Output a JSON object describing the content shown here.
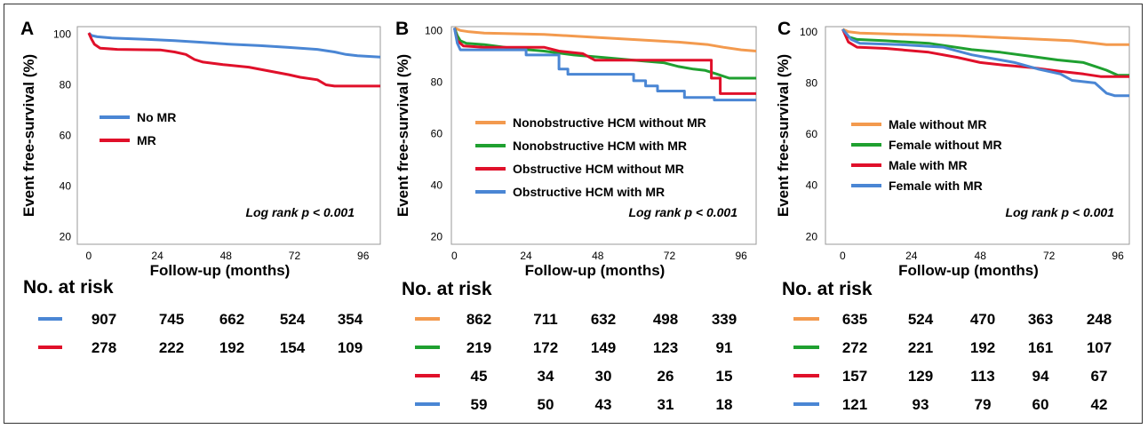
{
  "chart_data": [
    {
      "type": "line",
      "panel_label": "A",
      "ylabel": "Event free-survival (%)",
      "xlabel": "Follow-up (months)",
      "xlim": [
        -4,
        102
      ],
      "ylim": [
        17,
        103
      ],
      "xticks": [
        0,
        24,
        48,
        72,
        96
      ],
      "yticks": [
        20,
        40,
        60,
        80,
        100
      ],
      "annotation": "Log rank p < 0.001",
      "legend_position": "center-left",
      "series": [
        {
          "name": "No MR",
          "color": "#4a86d4",
          "points": [
            [
              0,
              100.5
            ],
            [
              1,
              99.5
            ],
            [
              3,
              99
            ],
            [
              8,
              98.5
            ],
            [
              20,
              98
            ],
            [
              30,
              97.5
            ],
            [
              40,
              96.8
            ],
            [
              50,
              96
            ],
            [
              60,
              95.5
            ],
            [
              70,
              94.8
            ],
            [
              80,
              94
            ],
            [
              86,
              93
            ],
            [
              90,
              92
            ],
            [
              94,
              91.5
            ],
            [
              102,
              91
            ]
          ]
        },
        {
          "name": "MR",
          "color": "#e0102a",
          "points": [
            [
              0,
              100.5
            ],
            [
              1,
              98
            ],
            [
              2,
              96
            ],
            [
              4,
              94.5
            ],
            [
              10,
              94
            ],
            [
              25,
              93.8
            ],
            [
              30,
              93
            ],
            [
              34,
              92
            ],
            [
              37,
              90
            ],
            [
              40,
              89
            ],
            [
              47,
              88
            ],
            [
              56,
              87
            ],
            [
              63,
              85.5
            ],
            [
              70,
              84
            ],
            [
              74,
              83
            ],
            [
              80,
              82
            ],
            [
              83,
              80
            ],
            [
              86,
              79.5
            ],
            [
              102,
              79.5
            ]
          ]
        }
      ],
      "risk_table": {
        "title": "No. at risk",
        "rows": [
          {
            "color": "#4a86d4",
            "values": [
              907,
              745,
              662,
              524,
              354
            ]
          },
          {
            "color": "#e0102a",
            "values": [
              278,
              222,
              192,
              154,
              109
            ]
          }
        ]
      }
    },
    {
      "type": "line",
      "panel_label": "B",
      "ylabel": "Event free-survival (%)",
      "xlabel": "Follow-up (months)",
      "xlim": [
        -1,
        101
      ],
      "ylim": [
        17,
        101.5
      ],
      "xticks": [
        0,
        24,
        48,
        72,
        96
      ],
      "yticks": [
        20,
        40,
        60,
        80,
        100
      ],
      "annotation": "Log rank p < 0.001",
      "legend_position": "center-left",
      "series": [
        {
          "name": "Nonobstructive HCM without MR",
          "color": "#f39a4e",
          "points": [
            [
              0,
              101
            ],
            [
              2,
              100
            ],
            [
              5,
              99.5
            ],
            [
              10,
              99
            ],
            [
              30,
              98.5
            ],
            [
              45,
              97.5
            ],
            [
              60,
              96.5
            ],
            [
              75,
              95.5
            ],
            [
              85,
              94.5
            ],
            [
              90,
              93.5
            ],
            [
              96,
              92.5
            ],
            [
              101,
              92
            ]
          ]
        },
        {
          "name": "Nonobstructive HCM with MR",
          "color": "#1fa030",
          "points": [
            [
              0,
              101
            ],
            [
              1,
              98
            ],
            [
              2,
              96
            ],
            [
              4,
              95
            ],
            [
              10,
              94.5
            ],
            [
              20,
              93
            ],
            [
              30,
              92
            ],
            [
              40,
              90.5
            ],
            [
              50,
              89.5
            ],
            [
              60,
              88.5
            ],
            [
              70,
              87.5
            ],
            [
              75,
              86
            ],
            [
              80,
              85
            ],
            [
              84,
              84.5
            ],
            [
              88,
              83
            ],
            [
              92,
              81.5
            ],
            [
              101,
              81.5
            ]
          ]
        },
        {
          "name": "Obstructive HCM without MR",
          "color": "#e0102a",
          "points": [
            [
              0,
              101
            ],
            [
              1,
              96
            ],
            [
              3,
              94
            ],
            [
              10,
              93.5
            ],
            [
              30,
              93.5
            ],
            [
              35,
              92
            ],
            [
              43,
              91
            ],
            [
              47,
              88.5
            ],
            [
              60,
              88.5
            ],
            [
              86,
              88.5
            ],
            [
              86,
              81.5
            ],
            [
              89,
              81.5
            ],
            [
              89,
              75.5
            ],
            [
              101,
              75.5
            ]
          ]
        },
        {
          "name": "Obstructive HCM with MR",
          "color": "#4a86d4",
          "points": [
            [
              0,
              101
            ],
            [
              1,
              95
            ],
            [
              2,
              92.5
            ],
            [
              24,
              92.5
            ],
            [
              24,
              90.5
            ],
            [
              35,
              90.5
            ],
            [
              35,
              85
            ],
            [
              38,
              85
            ],
            [
              38,
              83
            ],
            [
              60,
              83
            ],
            [
              60,
              80.5
            ],
            [
              64,
              80.5
            ],
            [
              64,
              78.5
            ],
            [
              68,
              78.5
            ],
            [
              68,
              76.5
            ],
            [
              77,
              76.5
            ],
            [
              77,
              74
            ],
            [
              87,
              74
            ],
            [
              87,
              73
            ],
            [
              101,
              73
            ]
          ]
        }
      ],
      "risk_table": {
        "title": "No. at risk",
        "rows": [
          {
            "color": "#f39a4e",
            "values": [
              862,
              711,
              632,
              498,
              339
            ]
          },
          {
            "color": "#1fa030",
            "values": [
              219,
              172,
              149,
              123,
              91
            ]
          },
          {
            "color": "#e0102a",
            "values": [
              45,
              34,
              30,
              26,
              15
            ]
          },
          {
            "color": "#4a86d4",
            "values": [
              59,
              50,
              43,
              31,
              18
            ]
          }
        ]
      }
    },
    {
      "type": "line",
      "panel_label": "C",
      "ylabel": "Event free-survival (%)",
      "xlabel": "Follow-up (months)",
      "xlim": [
        -6,
        100
      ],
      "ylim": [
        17,
        102
      ],
      "xticks": [
        0,
        24,
        48,
        72,
        96
      ],
      "yticks": [
        20,
        40,
        60,
        80,
        100
      ],
      "annotation": "Log rank p < 0.001",
      "legend_position": "center-left",
      "series": [
        {
          "name": "Male without MR",
          "color": "#f39a4e",
          "points": [
            [
              0,
              101
            ],
            [
              2,
              100
            ],
            [
              6,
              99.5
            ],
            [
              20,
              99
            ],
            [
              40,
              98.5
            ],
            [
              60,
              97.5
            ],
            [
              80,
              96.5
            ],
            [
              88,
              95.5
            ],
            [
              92,
              95
            ],
            [
              100,
              95
            ]
          ]
        },
        {
          "name": "Female without MR",
          "color": "#1fa030",
          "points": [
            [
              0,
              101
            ],
            [
              2,
              98
            ],
            [
              5,
              97
            ],
            [
              15,
              96.5
            ],
            [
              30,
              95.5
            ],
            [
              45,
              93
            ],
            [
              55,
              92
            ],
            [
              65,
              90.5
            ],
            [
              75,
              89
            ],
            [
              84,
              88
            ],
            [
              88,
              86.5
            ],
            [
              92,
              85
            ],
            [
              96,
              83
            ],
            [
              100,
              83
            ]
          ]
        },
        {
          "name": "Male with MR",
          "color": "#e0102a",
          "points": [
            [
              0,
              101
            ],
            [
              2,
              96
            ],
            [
              5,
              94
            ],
            [
              15,
              93.5
            ],
            [
              30,
              92
            ],
            [
              40,
              90
            ],
            [
              48,
              88
            ],
            [
              56,
              87
            ],
            [
              66,
              86
            ],
            [
              76,
              84.5
            ],
            [
              84,
              83.5
            ],
            [
              90,
              82.5
            ],
            [
              100,
              82.5
            ]
          ]
        },
        {
          "name": "Female with MR",
          "color": "#4a86d4",
          "points": [
            [
              0,
              101
            ],
            [
              3,
              97
            ],
            [
              6,
              95.5
            ],
            [
              20,
              95
            ],
            [
              35,
              94
            ],
            [
              45,
              91
            ],
            [
              55,
              89
            ],
            [
              60,
              88
            ],
            [
              68,
              85.5
            ],
            [
              76,
              83.5
            ],
            [
              80,
              81
            ],
            [
              88,
              80
            ],
            [
              92,
              76
            ],
            [
              95,
              75
            ],
            [
              100,
              75
            ]
          ]
        }
      ],
      "risk_table": {
        "title": "No. at risk",
        "rows": [
          {
            "color": "#f39a4e",
            "values": [
              635,
              524,
              470,
              363,
              248
            ]
          },
          {
            "color": "#1fa030",
            "values": [
              272,
              221,
              192,
              161,
              107
            ]
          },
          {
            "color": "#e0102a",
            "values": [
              157,
              129,
              113,
              94,
              67
            ]
          },
          {
            "color": "#4a86d4",
            "values": [
              121,
              93,
              79,
              60,
              42
            ]
          }
        ]
      }
    }
  ]
}
